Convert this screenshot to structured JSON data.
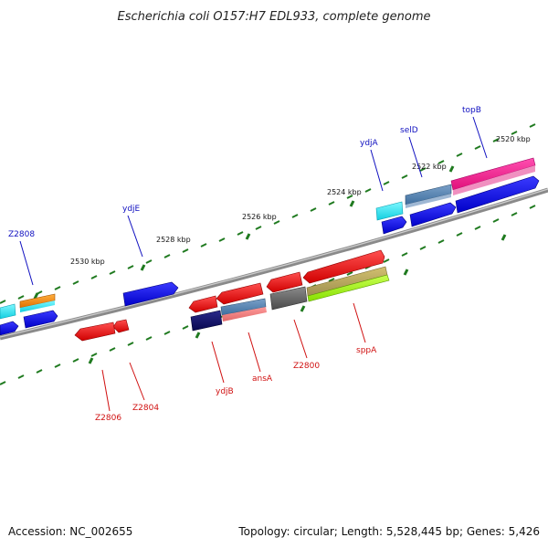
{
  "title": "Escherichia coli O157:H7 EDL933, complete genome",
  "footer": {
    "accession": "Accession: NC_002655",
    "summary": "Topology: circular; Length: 5,528,445 bp; Genes: 5,426"
  },
  "colors": {
    "backbone": "#8a8a8a",
    "tick": "#1f7a1f",
    "plus_label": "#1010c0",
    "minus_label": "#d01010"
  },
  "kbp_labels": [
    "2520 kbp",
    "2522 kbp",
    "2524 kbp",
    "2526 kbp",
    "2528 kbp",
    "2530 kbp"
  ],
  "plus_labels": [
    "topB",
    "selD",
    "ydjA",
    "ydjE",
    "Z2808"
  ],
  "minus_labels": [
    "sppA",
    "Z2800",
    "ansA",
    "ydjB",
    "Z2804",
    "Z2806"
  ]
}
